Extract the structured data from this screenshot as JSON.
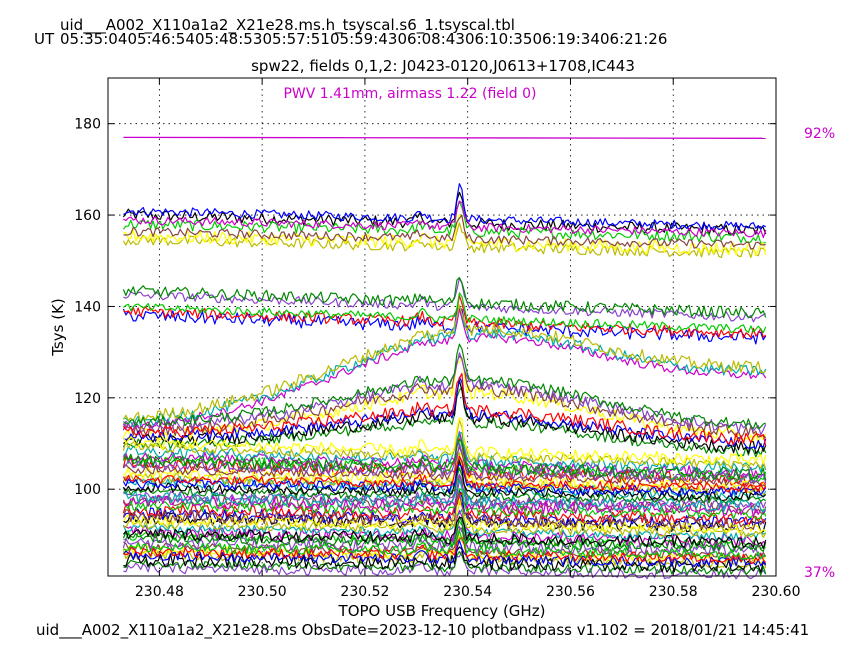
{
  "header": {
    "title_line": "uid___A002_X110a1a2_X21e28.ms.h_tsyscal.s6_1.tsyscal.tbl",
    "ut_prefix": "UT",
    "ut_times": [
      "05:35:04",
      "05:46:54",
      "05:48:53",
      "05:57:51",
      "05:59:43",
      "06:08:43",
      "06:10:35",
      "06:19:34",
      "06:21:26"
    ],
    "subtitle": "spw22,  fields 0,1,2: J0423-0120,J0613+1708,IC443"
  },
  "footer": {
    "text": "uid___A002_X110a1a2_X21e28.ms  ObsDate=2023-12-10   plotbandpass v1.102 = 2018/01/21 14:45:41"
  },
  "colors": {
    "annotation": "#cc00cc",
    "palette": [
      "#000000",
      "#0000ff",
      "#ff0000",
      "#00cc00",
      "#cc00cc",
      "#00aaaa",
      "#bbbb00",
      "#ffff00",
      "#884444",
      "#8844cc",
      "#008800"
    ]
  },
  "chart_data": {
    "type": "line",
    "xlabel": "TOPO USB Frequency (GHz)",
    "ylabel": "Tsys (K)",
    "xlim": [
      230.47,
      230.6
    ],
    "ylim": [
      81,
      190
    ],
    "x_ticks": [
      "230.48",
      "230.50",
      "230.52",
      "230.54",
      "230.56",
      "230.58",
      "230.60"
    ],
    "x_tick_values": [
      230.48,
      230.5,
      230.52,
      230.54,
      230.56,
      230.58,
      230.6
    ],
    "y_ticks": [
      "100",
      "120",
      "140",
      "160",
      "180"
    ],
    "y_tick_values": [
      100,
      120,
      140,
      160,
      180
    ],
    "grid": true,
    "x_start": 230.473,
    "x_end": 230.598,
    "spike_freq": 230.5385,
    "pwv_annotation": "PWV 1.41mm, airmass 1.22 (field 0)",
    "transmission_line": {
      "y_start": 177.0,
      "y_end": 176.8,
      "color": "#cc00cc"
    },
    "transmission_labels": {
      "top": "92%",
      "bottom": "37%"
    },
    "series_groups": [
      {
        "level_start": 160.5,
        "level_end": 157.0,
        "count": 2,
        "spike": 7
      },
      {
        "level_start": 158.5,
        "level_end": 155.5,
        "count": 2,
        "spike": 6
      },
      {
        "level_start": 155.5,
        "level_end": 152.5,
        "count": 3,
        "spike": 5
      },
      {
        "level_start": 143.0,
        "level_end": 138.0,
        "count": 2,
        "spike": 6
      },
      {
        "level_start": 139.0,
        "level_end": 134.0,
        "count": 3,
        "spike": 5
      },
      {
        "level_start": 114.0,
        "level_end": 125.0,
        "bulge": 14,
        "count": 3,
        "spike": 6
      },
      {
        "level_start": 113.0,
        "level_end": 112.0,
        "bulge": 10,
        "count": 4,
        "spike": 8
      },
      {
        "level_start": 111.0,
        "level_end": 109.0,
        "bulge": 6,
        "count": 4,
        "spike": 8
      },
      {
        "level_start": 108.0,
        "level_end": 104.0,
        "count": 6,
        "spike": 7
      },
      {
        "level_start": 104.0,
        "level_end": 101.0,
        "count": 6,
        "spike": 6
      },
      {
        "level_start": 100.0,
        "level_end": 98.0,
        "count": 6,
        "spike": 6
      },
      {
        "level_start": 96.0,
        "level_end": 94.0,
        "count": 6,
        "spike": 5
      },
      {
        "level_start": 92.0,
        "level_end": 90.0,
        "count": 6,
        "spike": 5
      },
      {
        "level_start": 88.0,
        "level_end": 86.0,
        "count": 6,
        "spike": 5
      },
      {
        "level_start": 85.0,
        "level_end": 83.5,
        "count": 6,
        "spike": 4
      }
    ]
  }
}
